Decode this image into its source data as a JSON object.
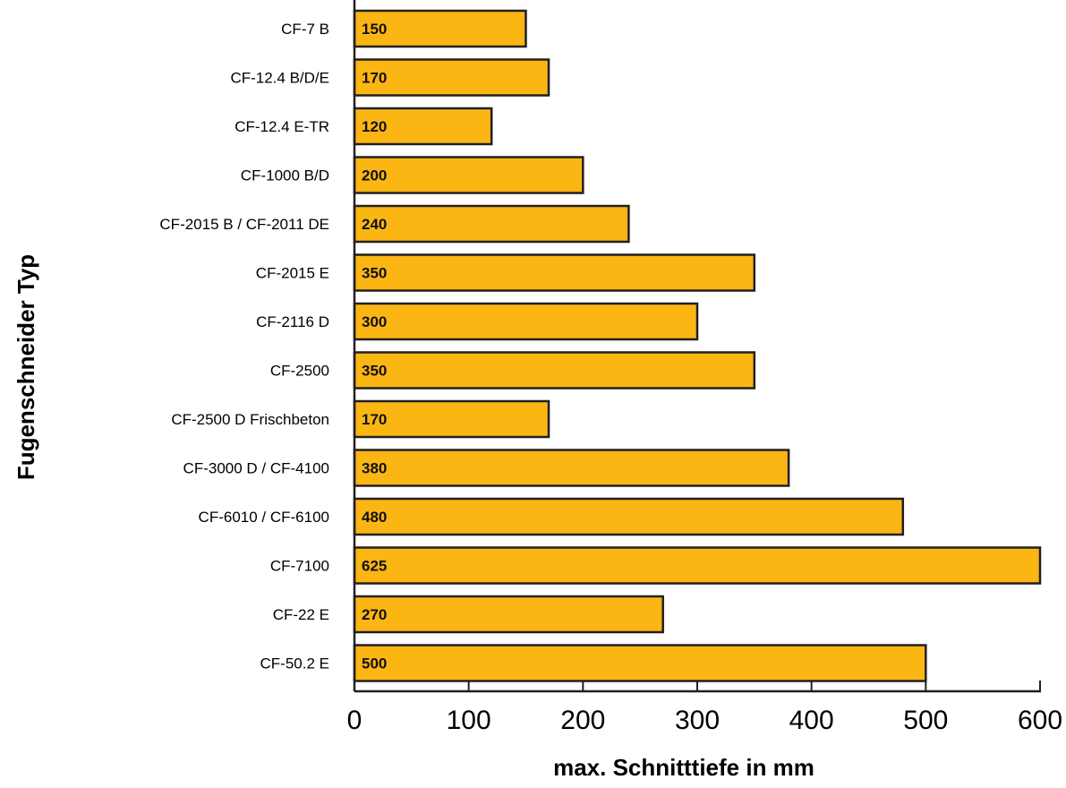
{
  "chart_data": {
    "type": "bar",
    "orientation": "horizontal",
    "categories": [
      "CF-7 B",
      "CF-12.4 B/D/E",
      "CF-12.4 E-TR",
      "CF-1000 B/D",
      "CF-2015 B / CF-2011 DE",
      "CF-2015 E",
      "CF-2116 D",
      "CF-2500",
      "CF-2500 D Frischbeton",
      "CF-3000 D / CF-4100",
      "CF-6010 / CF-6100",
      "CF-7100",
      "CF-22 E",
      "CF-50.2 E"
    ],
    "values": [
      150,
      170,
      120,
      200,
      240,
      350,
      300,
      350,
      170,
      380,
      480,
      625,
      270,
      500
    ],
    "value_labels": [
      "150",
      "170",
      "120",
      "200",
      "240",
      "350",
      "300",
      "350",
      "170",
      "380",
      "480",
      "625",
      "270",
      "500"
    ],
    "xlabel": "max. Schnitttiefe in mm",
    "ylabel": "Fugenschneider Typ",
    "xlim": [
      0,
      600
    ],
    "xticks": [
      0,
      100,
      200,
      300,
      400,
      500,
      600
    ],
    "xtick_labels": [
      "0",
      "100",
      "200",
      "300",
      "400",
      "500",
      "600"
    ],
    "grid": false,
    "legend": "none",
    "colors": {
      "bar_fill": "#FBB614",
      "bar_stroke": "#231F20",
      "axis": "#231F20"
    }
  }
}
